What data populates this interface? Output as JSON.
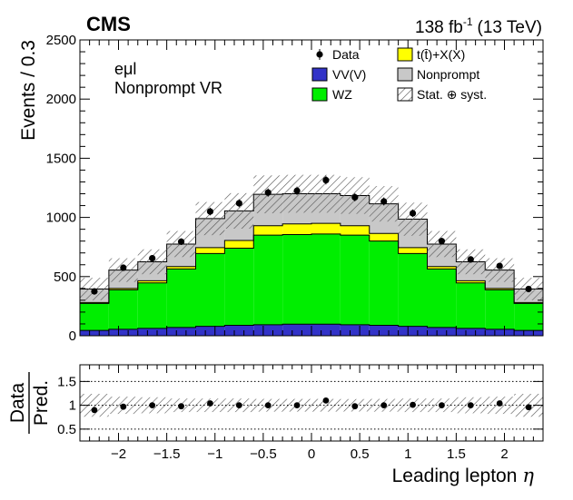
{
  "chart_data": {
    "type": "stacked-histogram-with-ratio",
    "experiment": "CMS",
    "luminosity_label": "138 fb",
    "luminosity_exponent": "-1",
    "energy_label": "(13 TeV)",
    "channel": "eμl",
    "region": "Nonprompt VR",
    "xlabel": "Leading lepton",
    "xlabel_symbol": "η",
    "ylabel": "Events / 0.3",
    "ratio_ylabel_top": "Data",
    "ratio_ylabel_bottom": "Pred.",
    "xlim": [
      -2.4,
      2.4
    ],
    "ylim": [
      0,
      2500
    ],
    "ratio_ylim": [
      0.25,
      1.85
    ],
    "bin_edges": [
      -2.4,
      -2.1,
      -1.8,
      -1.5,
      -1.2,
      -0.9,
      -0.6,
      -0.3,
      0.0,
      0.3,
      0.6,
      0.9,
      1.2,
      1.5,
      1.8,
      2.1,
      2.4
    ],
    "bin_centers": [
      -2.25,
      -1.95,
      -1.65,
      -1.35,
      -1.05,
      -0.75,
      -0.45,
      -0.15,
      0.15,
      0.45,
      0.75,
      1.05,
      1.35,
      1.65,
      1.95,
      2.25
    ],
    "x_ticks": [
      -2,
      -1.5,
      -1,
      -0.5,
      0,
      0.5,
      1,
      1.5,
      2
    ],
    "x_tick_labels": [
      "−2",
      "−1.5",
      "−1",
      "−0.5",
      "0",
      "0.5",
      "1",
      "1.5",
      "2"
    ],
    "y_ticks": [
      0,
      500,
      1000,
      1500,
      2000,
      2500
    ],
    "y_tick_labels": [
      "0",
      "500",
      "1000",
      "1500",
      "2000",
      "2500"
    ],
    "ratio_ticks": [
      0.5,
      1,
      1.5
    ],
    "ratio_tick_labels": [
      "0.5",
      "1",
      "1.5"
    ],
    "series": [
      {
        "name": "VV(V)",
        "color": "#3233c8",
        "values": [
          45,
          55,
          62,
          70,
          80,
          88,
          93,
          98,
          98,
          93,
          88,
          80,
          70,
          62,
          55,
          45
        ]
      },
      {
        "name": "WZ",
        "color": "#00ee00",
        "values": [
          228,
          333,
          385,
          495,
          615,
          652,
          757,
          757,
          762,
          757,
          712,
          615,
          495,
          385,
          333,
          228
        ]
      },
      {
        "name": "t(t̄)+X(X)",
        "color": "#ffff00",
        "values": [
          8,
          12,
          18,
          20,
          50,
          65,
          80,
          90,
          90,
          80,
          65,
          50,
          20,
          18,
          12,
          8
        ]
      },
      {
        "name": "Nonprompt",
        "color": "#c8c8c8",
        "values": [
          114,
          155,
          160,
          190,
          245,
          250,
          265,
          255,
          250,
          255,
          250,
          240,
          190,
          160,
          155,
          114
        ]
      }
    ],
    "prediction_total": [
      395,
      555,
      625,
      775,
      990,
      1055,
      1195,
      1200,
      1200,
      1185,
      1115,
      985,
      775,
      625,
      555,
      395
    ],
    "uncertainty": [
      95,
      100,
      105,
      110,
      140,
      150,
      160,
      160,
      160,
      155,
      150,
      140,
      110,
      105,
      100,
      95
    ],
    "data": [
      375,
      575,
      655,
      795,
      1050,
      1120,
      1210,
      1225,
      1315,
      1170,
      1135,
      1035,
      800,
      645,
      590,
      395
    ],
    "ratio": [
      0.9,
      0.97,
      1.0,
      0.98,
      1.04,
      1.0,
      1.0,
      1.0,
      1.1,
      0.98,
      1.0,
      1.01,
      1.0,
      1.0,
      1.04,
      0.96
    ],
    "legend": [
      {
        "label": "Data",
        "kind": "marker"
      },
      {
        "label": "t(t̄)+X(X)",
        "kind": "box",
        "color": "#ffff00"
      },
      {
        "label": "VV(V)",
        "kind": "box",
        "color": "#3233c8"
      },
      {
        "label": "Nonprompt",
        "kind": "box",
        "color": "#c8c8c8"
      },
      {
        "label": "WZ",
        "kind": "box",
        "color": "#00ee00"
      },
      {
        "label": "Stat. ⊕ syst.",
        "kind": "hatch"
      }
    ]
  }
}
